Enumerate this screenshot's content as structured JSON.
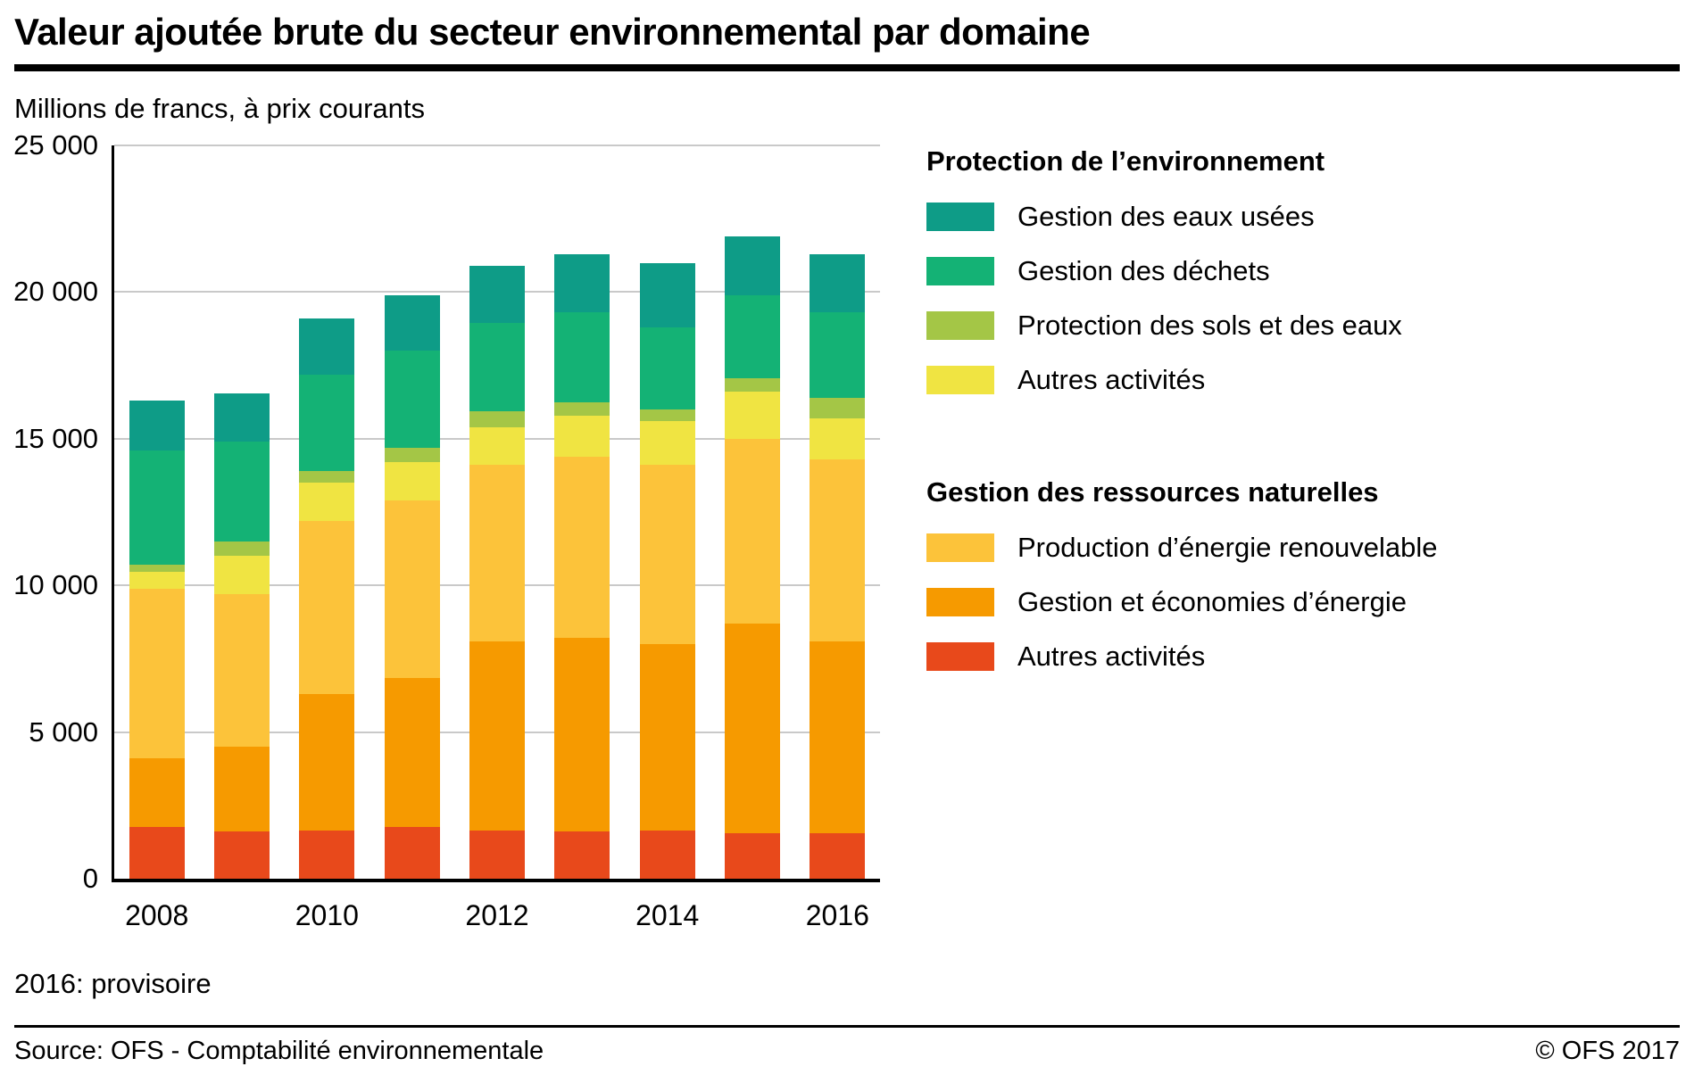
{
  "header": {
    "title": "Valeur ajoutée brute du secteur environnemental par domaine",
    "subtitle": "Millions de francs, à prix courants"
  },
  "chart_data": {
    "type": "bar",
    "stacked": true,
    "stack_order": "bottom-to-top",
    "categories": [
      "2008",
      "2009",
      "2010",
      "2011",
      "2012",
      "2013",
      "2014",
      "2015",
      "2016"
    ],
    "x_tick_labels": [
      "2008",
      "2010",
      "2012",
      "2014",
      "2016"
    ],
    "x_tick_positions": [
      0,
      2,
      4,
      6,
      8
    ],
    "ylim": [
      0,
      25000
    ],
    "y_ticks": [
      0,
      5000,
      10000,
      15000,
      20000,
      25000
    ],
    "y_tick_labels": [
      "0",
      "5 000",
      "10 000",
      "15 000",
      "20 000",
      "25 000"
    ],
    "ylabel": "Millions de francs, à prix courants",
    "grid": "horizontal",
    "legend_position": "right",
    "series": [
      {
        "name": "Autres activités (gestion des ressources naturelles)",
        "group": "Gestion des ressources naturelles",
        "color": "#E8491B",
        "values": [
          1750,
          1600,
          1650,
          1750,
          1650,
          1600,
          1650,
          1550,
          1550
        ]
      },
      {
        "name": "Gestion et économies d’énergie",
        "group": "Gestion des ressources naturelles",
        "color": "#F69A00",
        "values": [
          2350,
          2900,
          4650,
          5100,
          6450,
          6600,
          6350,
          7150,
          6550
        ]
      },
      {
        "name": "Production d’énergie renouvelable",
        "group": "Gestion des ressources naturelles",
        "color": "#FCC33A",
        "values": [
          5800,
          5200,
          5900,
          6050,
          6000,
          6200,
          6100,
          6300,
          6200
        ]
      },
      {
        "name": "Autres activités (protection de l’environnement)",
        "group": "Protection de l’environnement",
        "color": "#F0E442",
        "values": [
          550,
          1300,
          1300,
          1300,
          1300,
          1400,
          1500,
          1600,
          1400
        ]
      },
      {
        "name": "Protection des sols et des eaux",
        "group": "Protection de l’environnement",
        "color": "#A4C646",
        "values": [
          250,
          500,
          400,
          500,
          550,
          450,
          400,
          450,
          700
        ]
      },
      {
        "name": "Gestion des déchets",
        "group": "Protection de l’environnement",
        "color": "#14B275",
        "values": [
          3900,
          3400,
          3300,
          3300,
          3000,
          3050,
          2800,
          2850,
          2900
        ]
      },
      {
        "name": "Gestion des eaux usées",
        "group": "Protection de l’environnement",
        "color": "#0E9C87",
        "values": [
          1700,
          1650,
          1900,
          1900,
          1950,
          2000,
          2200,
          2000,
          2000
        ]
      }
    ]
  },
  "legend": {
    "groups": [
      {
        "title": "Protection de l’environnement",
        "items": [
          {
            "label": "Gestion des eaux usées",
            "color": "#0E9C87"
          },
          {
            "label": "Gestion des déchets",
            "color": "#14B275"
          },
          {
            "label": "Protection des sols et des eaux",
            "color": "#A4C646"
          },
          {
            "label": "Autres activités",
            "color": "#F0E442"
          }
        ]
      },
      {
        "title": "Gestion des ressources naturelles",
        "items": [
          {
            "label": "Production d’énergie renouvelable",
            "color": "#FCC33A"
          },
          {
            "label": "Gestion et économies d’énergie",
            "color": "#F69A00"
          },
          {
            "label": "Autres activités",
            "color": "#E8491B"
          }
        ]
      }
    ]
  },
  "footer": {
    "note": "2016: provisoire",
    "source": "Source: OFS - Comptabilité environnementale",
    "copyright": "© OFS 2017"
  }
}
